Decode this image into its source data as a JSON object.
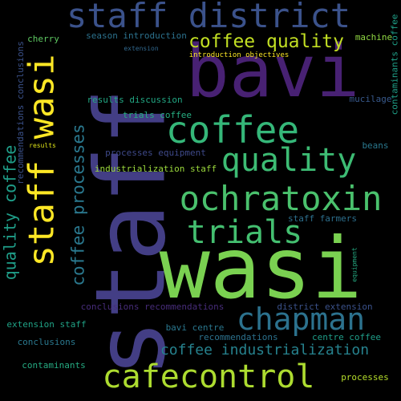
{
  "words": [
    {
      "text": "staff",
      "color": "#433e85"
    },
    {
      "text": "bavi",
      "color": "#482173"
    },
    {
      "text": "wasi",
      "color": "#7ad151"
    },
    {
      "text": "staff district",
      "color": "#3b528b"
    },
    {
      "text": "staff wasi",
      "color": "#fde725"
    },
    {
      "text": "coffee",
      "color": "#35b779"
    },
    {
      "text": "quality",
      "color": "#3dbc74"
    },
    {
      "text": "ochratoxin",
      "color": "#4ac16d"
    },
    {
      "text": "trials",
      "color": "#44bf70"
    },
    {
      "text": "chapman",
      "color": "#2c728e"
    },
    {
      "text": "cafecontrol",
      "color": "#addc30"
    },
    {
      "text": "coffee quality",
      "color": "#c2df23"
    },
    {
      "text": "coffee industrialization",
      "color": "#26828e"
    },
    {
      "text": "quality coffee",
      "color": "#1f9e89"
    },
    {
      "text": "coffee processes",
      "color": "#2a788e"
    },
    {
      "text": "season introduction",
      "color": "#2c728e"
    },
    {
      "text": "cherry",
      "color": "#5ec962"
    },
    {
      "text": "machine",
      "color": "#90d743"
    },
    {
      "text": "contaminants coffee",
      "color": "#1fa088"
    },
    {
      "text": "extension",
      "color": "#31688e"
    },
    {
      "text": "introduction objectives",
      "color": "#fde725"
    },
    {
      "text": "recommendations conclusions",
      "color": "#3b528b"
    },
    {
      "text": "results discussion",
      "color": "#22a884"
    },
    {
      "text": "mucilage",
      "color": "#38598c"
    },
    {
      "text": "trials coffee",
      "color": "#26ad81"
    },
    {
      "text": "processes equipment",
      "color": "#3e4989"
    },
    {
      "text": "beans",
      "color": "#2a788e"
    },
    {
      "text": "results",
      "color": "#dde318"
    },
    {
      "text": "industrialization staff",
      "color": "#9bd93c"
    },
    {
      "text": "staff farmers",
      "color": "#2d708e"
    },
    {
      "text": "equipment",
      "color": "#25ab82"
    },
    {
      "text": "conclusions recommendations",
      "color": "#472c7a"
    },
    {
      "text": "district extension",
      "color": "#3b528b"
    },
    {
      "text": "extension staff",
      "color": "#20a386"
    },
    {
      "text": "bavi centre",
      "color": "#2a778e"
    },
    {
      "text": "recommendations",
      "color": "#2c728e"
    },
    {
      "text": "centre coffee",
      "color": "#1f9e89"
    },
    {
      "text": "conclusions",
      "color": "#2a788e"
    },
    {
      "text": "contaminants",
      "color": "#25ab82"
    },
    {
      "text": "processes",
      "color": "#b5de2b"
    }
  ]
}
